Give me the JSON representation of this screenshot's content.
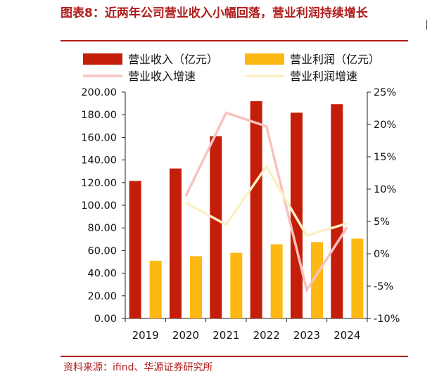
{
  "title": "图表8：近两年公司营业收入小幅回落，营业利润持续增长",
  "source": "资料来源：ifind、华源证券研究所",
  "chart_data": {
    "type": "bar",
    "categories": [
      "2019",
      "2020",
      "2021",
      "2022",
      "2023",
      "2024"
    ],
    "series": [
      {
        "name": "营业收入（亿元）",
        "type": "bar",
        "axis": "left",
        "color": "#c41e0a",
        "values": [
          121.5,
          132.5,
          161.0,
          192.0,
          181.8,
          189.3
        ]
      },
      {
        "name": "营业利润（亿元）",
        "type": "bar",
        "axis": "left",
        "color": "#fdb813",
        "values": [
          51.0,
          55.0,
          58.0,
          65.5,
          67.5,
          70.5
        ]
      },
      {
        "name": "营业收入增速",
        "type": "line",
        "axis": "right",
        "color": "#f7c2c0",
        "values": [
          null,
          8.9,
          21.8,
          19.7,
          -5.6,
          4.1
        ]
      },
      {
        "name": "营业利润增速",
        "type": "line",
        "axis": "right",
        "color": "#fdefc4",
        "values": [
          null,
          7.9,
          4.5,
          13.5,
          2.8,
          4.7
        ]
      }
    ],
    "y_left": {
      "min": 0,
      "max": 200,
      "ticks": [
        "0.00",
        "20.00",
        "40.00",
        "60.00",
        "80.00",
        "100.00",
        "120.00",
        "140.00",
        "160.00",
        "180.00",
        "200.00"
      ]
    },
    "y_right": {
      "min": -10,
      "max": 25,
      "ticks": [
        "-10%",
        "-5%",
        "0%",
        "5%",
        "10%",
        "15%",
        "20%",
        "25%"
      ]
    },
    "grid": false,
    "legend_position": "top"
  }
}
